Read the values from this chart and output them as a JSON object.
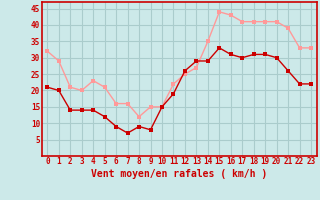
{
  "hours": [
    0,
    1,
    2,
    3,
    4,
    5,
    6,
    7,
    8,
    9,
    10,
    11,
    12,
    13,
    14,
    15,
    16,
    17,
    18,
    19,
    20,
    21,
    22,
    23
  ],
  "vent_moyen": [
    21,
    20,
    14,
    14,
    14,
    12,
    9,
    7,
    9,
    8,
    15,
    19,
    26,
    29,
    29,
    33,
    31,
    30,
    31,
    31,
    30,
    26,
    22,
    22
  ],
  "en_rafales": [
    32,
    29,
    21,
    20,
    23,
    21,
    16,
    16,
    12,
    15,
    15,
    22,
    25,
    27,
    35,
    44,
    43,
    41,
    41,
    41,
    41,
    39,
    33,
    33
  ],
  "bg_color": "#cce9e9",
  "grid_color": "#aacccc",
  "line_color_moyen": "#cc0000",
  "line_color_rafales": "#ff9999",
  "xlabel": "Vent moyen/en rafales ( km/h )",
  "ylabel_ticks": [
    5,
    10,
    15,
    20,
    25,
    30,
    35,
    40,
    45
  ],
  "ylim": [
    0,
    47
  ],
  "xlim": [
    -0.5,
    23.5
  ],
  "tick_color": "#cc0000",
  "label_fontsize": 5.5,
  "xlabel_fontsize": 7.0
}
